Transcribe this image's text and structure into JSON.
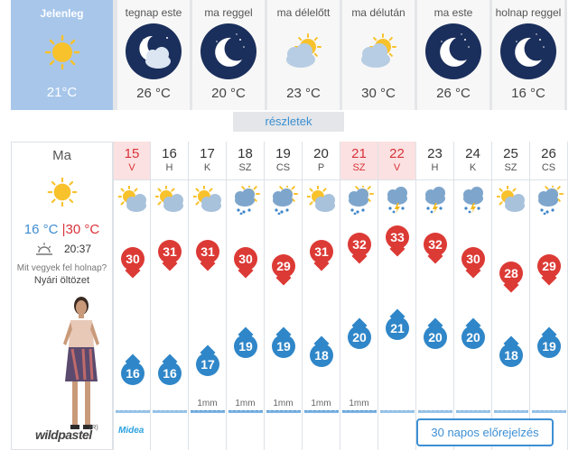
{
  "now": {
    "label": "Jelenleg",
    "temp": "21°C",
    "icon": "sun-icon"
  },
  "periods": [
    {
      "label": "tegnap este",
      "temp": "26 °C",
      "icon": "night-cloud-icon"
    },
    {
      "label": "ma reggel",
      "temp": "20 °C",
      "icon": "moon-icon"
    },
    {
      "label": "ma délelőtt",
      "temp": "23 °C",
      "icon": "sun-cloud-icon"
    },
    {
      "label": "ma délután",
      "temp": "30 °C",
      "icon": "sun-cloud-icon"
    },
    {
      "label": "ma este",
      "temp": "26 °C",
      "icon": "moon-icon"
    },
    {
      "label": "holnap reggel",
      "temp": "16 °C",
      "icon": "moon-icon"
    }
  ],
  "details_label": "részletek",
  "today": {
    "label": "Ma",
    "temp_low": "16 °C",
    "separator": "|",
    "temp_high": "30 °C",
    "sunset_time": "20:37",
    "question": "Mit vegyek fel holnap?",
    "answer": "Nyári öltözet",
    "logo": "wildpastel",
    "logo_mark": "(R)"
  },
  "days": [
    {
      "num": "15",
      "dow": "V",
      "holiday": true,
      "icon": "sun-cloud-icon",
      "high": "30",
      "low": "16",
      "rain": ""
    },
    {
      "num": "16",
      "dow": "H",
      "holiday": false,
      "icon": "sun-cloud-icon",
      "high": "31",
      "low": "16",
      "rain": ""
    },
    {
      "num": "17",
      "dow": "K",
      "holiday": false,
      "icon": "sun-cloud-icon",
      "high": "31",
      "low": "17",
      "rain": "1mm"
    },
    {
      "num": "18",
      "dow": "SZ",
      "holiday": false,
      "icon": "rain-cloud-icon",
      "high": "30",
      "low": "19",
      "rain": "1mm"
    },
    {
      "num": "19",
      "dow": "CS",
      "holiday": false,
      "icon": "rain-cloud-icon",
      "high": "29",
      "low": "19",
      "rain": "1mm"
    },
    {
      "num": "20",
      "dow": "P",
      "holiday": false,
      "icon": "sun-cloud-icon",
      "high": "31",
      "low": "18",
      "rain": "1mm"
    },
    {
      "num": "21",
      "dow": "SZ",
      "holiday": true,
      "icon": "rain-cloud-icon",
      "high": "32",
      "low": "20",
      "rain": "1mm"
    },
    {
      "num": "22",
      "dow": "V",
      "holiday": true,
      "icon": "thunderstorm-icon",
      "high": "33",
      "low": "21",
      "rain": ""
    },
    {
      "num": "23",
      "dow": "H",
      "holiday": false,
      "icon": "thunderstorm-icon",
      "high": "32",
      "low": "20",
      "rain": ""
    },
    {
      "num": "24",
      "dow": "K",
      "holiday": false,
      "icon": "thunderstorm-icon",
      "high": "30",
      "low": "20",
      "rain": ""
    },
    {
      "num": "25",
      "dow": "SZ",
      "holiday": false,
      "icon": "sun-cloud-icon",
      "high": "28",
      "low": "18",
      "rain": ""
    },
    {
      "num": "26",
      "dow": "CS",
      "holiday": false,
      "icon": "rain-cloud-icon",
      "high": "29",
      "low": "19",
      "rain": ""
    }
  ],
  "sponsor": "Midea",
  "forecast_button": "30 napos előrejelzés",
  "colors": {
    "high": "#dc3a35",
    "low": "#2f86c8",
    "holiday_bg": "#fbe1e1",
    "accent": "#3d8fd4"
  }
}
